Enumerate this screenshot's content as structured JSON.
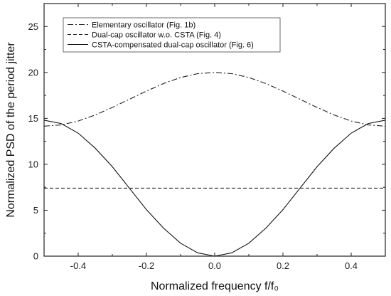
{
  "chart_data": {
    "type": "line",
    "xlabel": "Normalized frequency f/f₀",
    "ylabel": "Normalized PSD of the period jitter",
    "xlim": [
      -0.5,
      0.5
    ],
    "ylim": [
      0,
      27.5
    ],
    "xticks": [
      -0.4,
      -0.2,
      0.0,
      0.2,
      0.4
    ],
    "xtick_labels": [
      "-0.4",
      "-0.2",
      "0.0",
      "0.2",
      "0.4"
    ],
    "yticks": [
      0,
      5,
      10,
      15,
      20,
      25
    ],
    "ytick_labels": [
      "0",
      "5",
      "10",
      "15",
      "20",
      "25"
    ],
    "grid": false,
    "legend_position": "top-left",
    "x": [
      -0.5,
      -0.45,
      -0.4,
      -0.35,
      -0.3,
      -0.25,
      -0.2,
      -0.15,
      -0.1,
      -0.05,
      0.0,
      0.05,
      0.1,
      0.15,
      0.2,
      0.25,
      0.3,
      0.35,
      0.4,
      0.45,
      0.5
    ],
    "series": [
      {
        "name": "Elementary oscillator (Fig. 1b)",
        "style": "dashdot",
        "color": "#222222",
        "values": [
          14.15,
          14.29,
          14.71,
          15.37,
          16.19,
          17.08,
          17.97,
          18.79,
          19.45,
          19.87,
          20.0,
          19.87,
          19.45,
          18.79,
          17.97,
          17.08,
          16.19,
          15.37,
          14.71,
          14.29,
          14.15
        ]
      },
      {
        "name": "Dual-cap oscillator w.o. CSTA (Fig. 4)",
        "style": "dashed",
        "color": "#222222",
        "values": [
          7.4,
          7.4,
          7.4,
          7.4,
          7.4,
          7.4,
          7.4,
          7.4,
          7.4,
          7.4,
          7.4,
          7.4,
          7.4,
          7.4,
          7.4,
          7.4,
          7.4,
          7.4,
          7.4,
          7.4,
          7.4
        ]
      },
      {
        "name": "CSTA-compensated dual-cap oscillator (Fig. 6)",
        "style": "solid",
        "color": "#111111",
        "values": [
          14.8,
          14.44,
          13.39,
          11.75,
          9.74,
          7.4,
          5.06,
          3.05,
          1.41,
          0.36,
          0.0,
          0.36,
          1.41,
          3.05,
          5.06,
          7.4,
          9.74,
          11.75,
          13.39,
          14.44,
          14.8
        ]
      }
    ]
  }
}
